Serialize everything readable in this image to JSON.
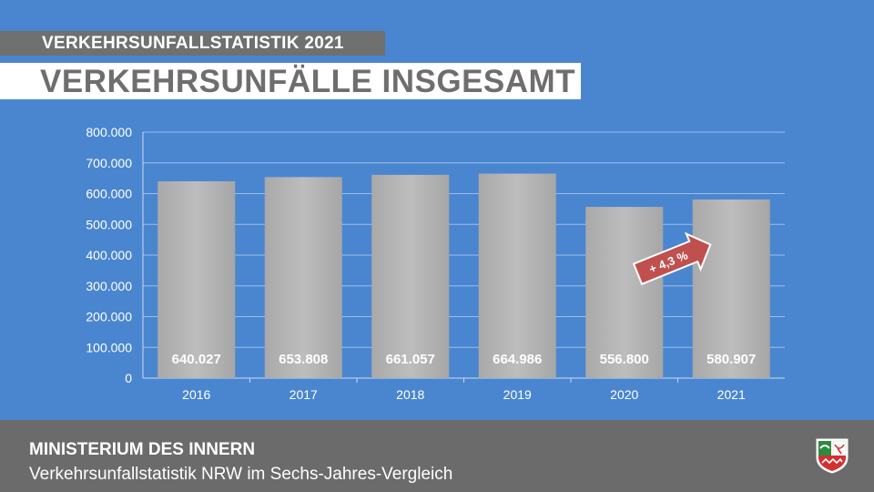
{
  "header": {
    "kicker": "VERKEHRSUNFALLSTATISTIK 2021",
    "title": "VERKEHRSUNFÄLLE INSGESAMT"
  },
  "chart_data": {
    "type": "bar",
    "categories": [
      "2016",
      "2017",
      "2018",
      "2019",
      "2020",
      "2021"
    ],
    "values": [
      640027,
      653808,
      661057,
      664986,
      556800,
      580907
    ],
    "value_labels": [
      "640.027",
      "653.808",
      "661.057",
      "664.986",
      "556.800",
      "580.907"
    ],
    "ylim": [
      0,
      800000
    ],
    "y_ticks": [
      0,
      100000,
      200000,
      300000,
      400000,
      500000,
      600000,
      700000,
      800000
    ],
    "y_tick_labels": [
      "0",
      "100.000",
      "200.000",
      "300.000",
      "400.000",
      "500.000",
      "600.000",
      "700.000",
      "800.000"
    ],
    "grid": true,
    "annotation": {
      "text": "+ 4,3 %",
      "from": "2020",
      "to": "2021"
    },
    "colors": {
      "bar": "#b0b0b0",
      "annotation": "#c0504d",
      "background": "#4a86cf"
    }
  },
  "footer": {
    "ministry": "MINISTERIUM DES INNERN",
    "subtitle": "Verkehrsunfallstatistik NRW im Sechs-Jahres-Vergleich",
    "logo": "nrw-coat-of-arms-icon"
  }
}
